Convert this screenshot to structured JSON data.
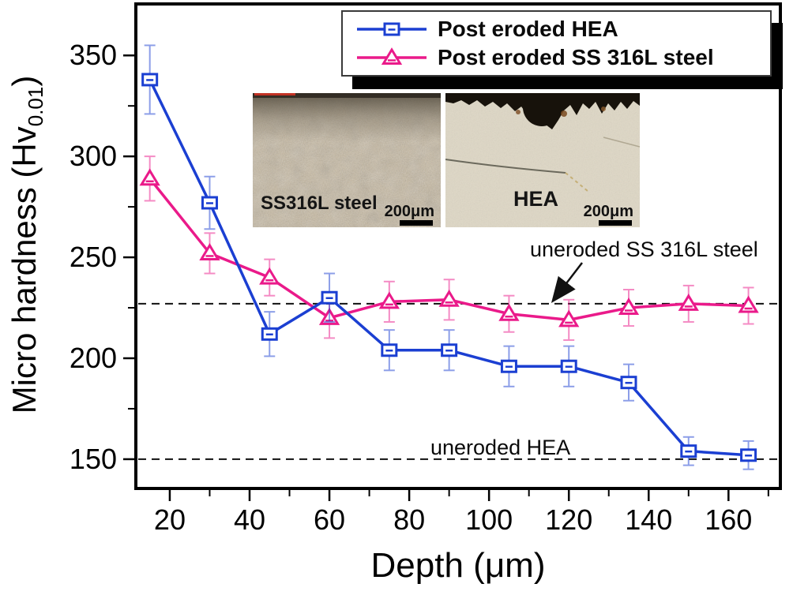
{
  "chart_data": {
    "type": "line",
    "title": "",
    "xlabel": "Depth (μm)",
    "ylabel_main": "Micro hardness (Hv",
    "ylabel_sub": "0.01",
    "ylabel_close": ")",
    "x": [
      15,
      30,
      45,
      60,
      75,
      90,
      105,
      120,
      135,
      150,
      165
    ],
    "series": [
      {
        "name": "Post eroded HEA",
        "color": "#1b3fd2",
        "marker": "square",
        "values": [
          338,
          277,
          212,
          230,
          204,
          204,
          196,
          196,
          188,
          154,
          152
        ],
        "errors": [
          17,
          13,
          11,
          12,
          10,
          10,
          10,
          10,
          9,
          7,
          7
        ]
      },
      {
        "name": "Post eroded SS 316L steel",
        "color": "#ea1a8a",
        "marker": "triangle",
        "values": [
          289,
          252,
          240,
          220,
          228,
          229,
          222,
          219,
          225,
          227,
          226
        ],
        "errors": [
          11,
          10,
          9,
          10,
          10,
          10,
          9,
          10,
          9,
          9,
          9
        ]
      }
    ],
    "reference_lines": [
      {
        "label": "uneroded SS 316L steel",
        "value": 227
      },
      {
        "label": "uneroded HEA",
        "value": 150
      }
    ],
    "xlim": [
      11.5,
      173
    ],
    "ylim": [
      135.5,
      375.5
    ],
    "xticks": [
      20,
      40,
      60,
      80,
      100,
      120,
      140,
      160
    ],
    "xminor": [
      30,
      50,
      70,
      90,
      110,
      130,
      150,
      170
    ],
    "yticks": [
      150,
      200,
      250,
      300,
      350
    ],
    "yminor": [
      175,
      225,
      275,
      325
    ],
    "grid": false,
    "legend_position": "top-right-inside"
  },
  "insets": [
    {
      "label": "SS316L steel",
      "scale_label": "200μm"
    },
    {
      "label": "HEA",
      "scale_label": "200μm"
    }
  ]
}
